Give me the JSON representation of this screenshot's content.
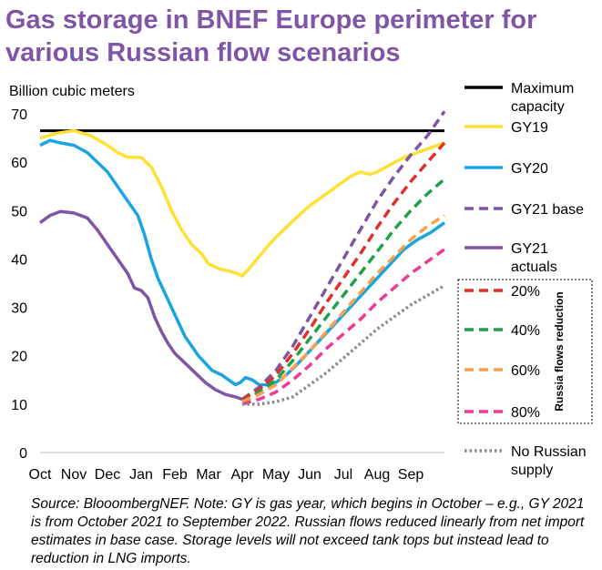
{
  "title": "Gas storage in BNEF Europe perimeter for various Russian flow scenarios",
  "source_note": "Source: BlooombergNEF. Note: GY is gas year, which begins in October – e.g., GY 2021 is from October 2021 to September 2022. Russian flows reduced linearly from net import estimates in base case. Storage levels will not exceed tank tops but instead lead to reduction in LNG imports.",
  "reduction_box_label": "Russia flows reduction",
  "chart_data": {
    "type": "line",
    "ylabel": "Billion cubic meters",
    "xlabel": "",
    "ylim": [
      0,
      70
    ],
    "yticks": [
      0,
      10,
      20,
      30,
      40,
      50,
      60,
      70
    ],
    "x_ticks": [
      "Oct",
      "Nov",
      "Dec",
      "Jan",
      "Feb",
      "Mar",
      "Apr",
      "May",
      "Jun",
      "Jul",
      "Aug",
      "Sep"
    ],
    "grid": false,
    "legend_position": "right",
    "series": [
      {
        "name": "Maximum capacity",
        "color": "#000000",
        "dash": "solid",
        "points": [
          [
            0,
            66.5
          ],
          [
            12,
            66.5
          ]
        ]
      },
      {
        "name": "GY19",
        "color": "#ffe135",
        "dash": "solid",
        "points": [
          [
            0,
            65
          ],
          [
            0.5,
            66
          ],
          [
            1,
            66.5
          ],
          [
            1.5,
            65.5
          ],
          [
            2,
            63.5
          ],
          [
            2.3,
            62
          ],
          [
            2.6,
            61
          ],
          [
            3,
            61
          ],
          [
            3.3,
            59
          ],
          [
            3.6,
            55
          ],
          [
            3.9,
            50
          ],
          [
            4.2,
            46
          ],
          [
            4.5,
            43
          ],
          [
            4.8,
            41
          ],
          [
            5,
            39
          ],
          [
            5.3,
            38
          ],
          [
            5.6,
            37.5
          ],
          [
            5.85,
            37
          ],
          [
            6,
            36.5
          ],
          [
            6.2,
            38
          ],
          [
            6.5,
            40.5
          ],
          [
            6.8,
            43
          ],
          [
            7,
            44.5
          ],
          [
            7.3,
            46.5
          ],
          [
            7.6,
            48.5
          ],
          [
            8,
            51
          ],
          [
            8.4,
            53
          ],
          [
            8.8,
            55
          ],
          [
            9.2,
            57
          ],
          [
            9.5,
            58
          ],
          [
            9.8,
            57.5
          ],
          [
            10,
            58
          ],
          [
            10.4,
            59.5
          ],
          [
            10.8,
            61
          ],
          [
            11.2,
            62
          ],
          [
            11.6,
            63
          ],
          [
            12,
            64
          ]
        ]
      },
      {
        "name": "GY20",
        "color": "#1ba5e0",
        "dash": "solid",
        "points": [
          [
            0,
            63.5
          ],
          [
            0.3,
            64.5
          ],
          [
            0.6,
            64
          ],
          [
            1,
            63.5
          ],
          [
            1.4,
            62
          ],
          [
            1.7,
            60
          ],
          [
            2,
            58
          ],
          [
            2.3,
            55
          ],
          [
            2.6,
            52
          ],
          [
            2.9,
            49
          ],
          [
            3.1,
            45
          ],
          [
            3.3,
            40
          ],
          [
            3.5,
            36
          ],
          [
            3.7,
            33
          ],
          [
            3.9,
            30
          ],
          [
            4.1,
            27
          ],
          [
            4.3,
            24
          ],
          [
            4.5,
            22
          ],
          [
            4.7,
            20
          ],
          [
            4.9,
            18.5
          ],
          [
            5.1,
            17
          ],
          [
            5.4,
            16
          ],
          [
            5.6,
            15
          ],
          [
            5.8,
            14
          ],
          [
            5.95,
            14.5
          ],
          [
            6.1,
            15.5
          ],
          [
            6.3,
            15
          ],
          [
            6.5,
            14
          ],
          [
            6.8,
            14
          ],
          [
            7,
            14.5
          ],
          [
            7.3,
            16
          ],
          [
            7.6,
            18
          ],
          [
            8,
            21
          ],
          [
            8.4,
            24
          ],
          [
            8.8,
            27
          ],
          [
            9.2,
            30
          ],
          [
            9.6,
            33
          ],
          [
            10,
            36
          ],
          [
            10.4,
            39
          ],
          [
            10.8,
            42
          ],
          [
            11.2,
            44
          ],
          [
            11.6,
            45.5
          ],
          [
            12,
            47.5
          ]
        ]
      },
      {
        "name": "GY21 actuals",
        "color": "#7f56a6",
        "dash": "solid",
        "points": [
          [
            0,
            47.5
          ],
          [
            0.3,
            49
          ],
          [
            0.6,
            49.8
          ],
          [
            1,
            49.5
          ],
          [
            1.4,
            48.5
          ],
          [
            1.7,
            46
          ],
          [
            2,
            43
          ],
          [
            2.3,
            40
          ],
          [
            2.6,
            37
          ],
          [
            2.8,
            34
          ],
          [
            3,
            33.5
          ],
          [
            3.2,
            32
          ],
          [
            3.4,
            28
          ],
          [
            3.6,
            25
          ],
          [
            3.8,
            22.5
          ],
          [
            4,
            20.5
          ],
          [
            4.3,
            18.5
          ],
          [
            4.6,
            16.5
          ],
          [
            4.9,
            14.5
          ],
          [
            5.2,
            13
          ],
          [
            5.5,
            12
          ],
          [
            5.8,
            11.5
          ],
          [
            6,
            11
          ]
        ]
      },
      {
        "name": "GY21 base",
        "color": "#7f56a6",
        "dash": "dash",
        "points": [
          [
            6,
            11
          ],
          [
            6.5,
            13.5
          ],
          [
            7,
            17
          ],
          [
            7.5,
            22
          ],
          [
            8,
            28
          ],
          [
            8.5,
            34
          ],
          [
            9,
            40
          ],
          [
            9.5,
            46
          ],
          [
            10,
            52
          ],
          [
            10.5,
            57
          ],
          [
            11,
            61.5
          ],
          [
            11.5,
            65.5
          ],
          [
            12,
            70.5
          ]
        ]
      },
      {
        "name": "20%",
        "color": "#e0302c",
        "dash": "dash",
        "points": [
          [
            6,
            11
          ],
          [
            6.5,
            13
          ],
          [
            7,
            16
          ],
          [
            7.5,
            20.5
          ],
          [
            8,
            25.5
          ],
          [
            8.5,
            31
          ],
          [
            9,
            36
          ],
          [
            9.5,
            41
          ],
          [
            10,
            46.5
          ],
          [
            10.5,
            51.5
          ],
          [
            11,
            56
          ],
          [
            11.5,
            60
          ],
          [
            12,
            64
          ]
        ]
      },
      {
        "name": "40%",
        "color": "#21a04a",
        "dash": "dash",
        "points": [
          [
            6,
            10.5
          ],
          [
            6.5,
            12.5
          ],
          [
            7,
            15
          ],
          [
            7.5,
            19
          ],
          [
            8,
            23.5
          ],
          [
            8.5,
            28
          ],
          [
            9,
            32.5
          ],
          [
            9.5,
            37
          ],
          [
            10,
            41.5
          ],
          [
            10.5,
            46
          ],
          [
            11,
            50
          ],
          [
            11.5,
            53.5
          ],
          [
            12,
            56.5
          ]
        ]
      },
      {
        "name": "60%",
        "color": "#f7a14b",
        "dash": "dash",
        "points": [
          [
            6,
            10.5
          ],
          [
            6.5,
            12
          ],
          [
            7,
            14
          ],
          [
            7.5,
            17.5
          ],
          [
            8,
            21
          ],
          [
            8.5,
            25
          ],
          [
            9,
            29
          ],
          [
            9.5,
            33
          ],
          [
            10,
            37
          ],
          [
            10.5,
            40.5
          ],
          [
            11,
            44
          ],
          [
            11.5,
            46.8
          ],
          [
            12,
            49
          ]
        ]
      },
      {
        "name": "80%",
        "color": "#ec3b96",
        "dash": "dash",
        "points": [
          [
            6,
            10
          ],
          [
            6.5,
            11
          ],
          [
            7,
            12.5
          ],
          [
            7.5,
            15
          ],
          [
            8,
            18
          ],
          [
            8.5,
            21.5
          ],
          [
            9,
            24.5
          ],
          [
            9.5,
            27.5
          ],
          [
            10,
            31
          ],
          [
            10.5,
            34
          ],
          [
            11,
            37
          ],
          [
            11.5,
            39.5
          ],
          [
            12,
            42
          ]
        ]
      },
      {
        "name": "No Russian supply",
        "color": "#8a8a8a",
        "dash": "dot",
        "points": [
          [
            6,
            10
          ],
          [
            6.5,
            10
          ],
          [
            7,
            10.5
          ],
          [
            7.5,
            11.5
          ],
          [
            8,
            14
          ],
          [
            8.5,
            16.5
          ],
          [
            9,
            19.5
          ],
          [
            9.5,
            22.5
          ],
          [
            10,
            25.5
          ],
          [
            10.5,
            28
          ],
          [
            11,
            30.5
          ],
          [
            11.5,
            32.5
          ],
          [
            12,
            34.5
          ]
        ]
      }
    ]
  },
  "legend": [
    {
      "label_lines": [
        "Maximum",
        "capacity"
      ],
      "color": "#000000",
      "dash": "solid"
    },
    {
      "label_lines": [
        "GY19"
      ],
      "color": "#ffe135",
      "dash": "solid"
    },
    {
      "label_lines": [
        "GY20"
      ],
      "color": "#1ba5e0",
      "dash": "solid"
    },
    {
      "label_lines": [
        "GY21 base"
      ],
      "color": "#7f56a6",
      "dash": "dash"
    },
    {
      "label_lines": [
        "GY21",
        "actuals"
      ],
      "color": "#7f56a6",
      "dash": "solid"
    },
    {
      "label_lines": [
        "20%"
      ],
      "color": "#e0302c",
      "dash": "dash"
    },
    {
      "label_lines": [
        "40%"
      ],
      "color": "#21a04a",
      "dash": "dash"
    },
    {
      "label_lines": [
        "60%"
      ],
      "color": "#f7a14b",
      "dash": "dash"
    },
    {
      "label_lines": [
        "80%"
      ],
      "color": "#ec3b96",
      "dash": "dash"
    },
    {
      "label_lines": [
        "No Russian",
        "supply"
      ],
      "color": "#8a8a8a",
      "dash": "dot"
    }
  ]
}
